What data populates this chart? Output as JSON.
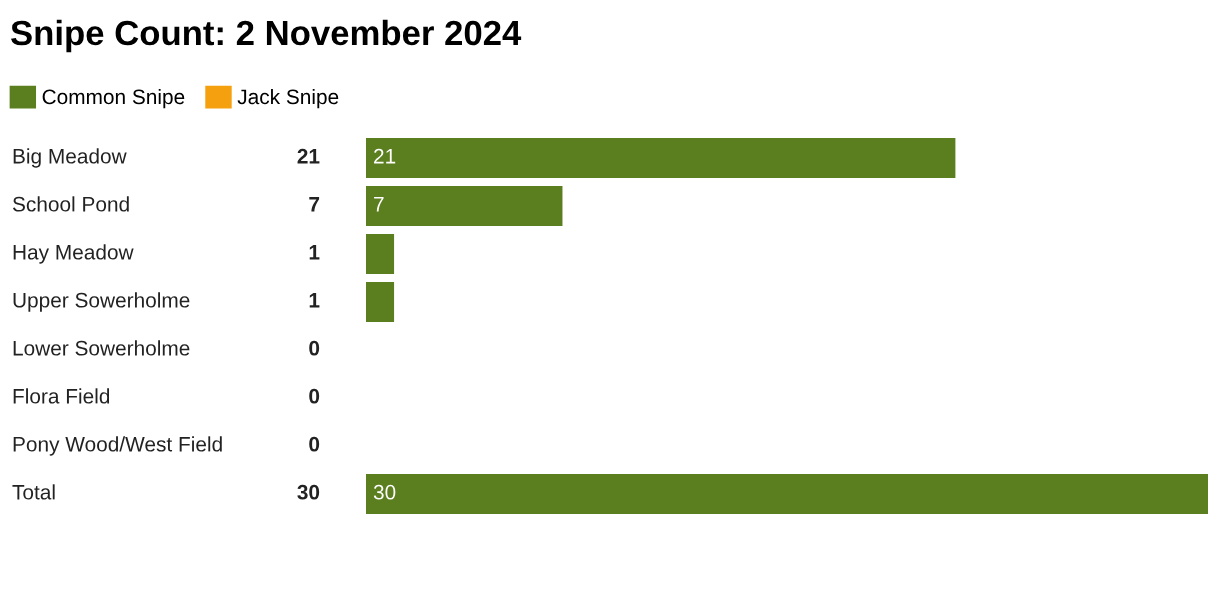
{
  "chart_data": {
    "type": "bar",
    "orientation": "horizontal",
    "title": "Snipe Count: 2 November 2024",
    "categories": [
      "Big Meadow",
      "School Pond",
      "Hay Meadow",
      "Upper Sowerholme",
      "Lower Sowerholme",
      "Flora Field",
      "Pony Wood/West Field",
      "Total"
    ],
    "series": [
      {
        "name": "Common Snipe",
        "color": "#5b7f1f",
        "values": [
          21,
          7,
          1,
          1,
          0,
          0,
          0,
          30
        ],
        "value_labels": [
          "21",
          "7",
          null,
          null,
          null,
          null,
          null,
          "30"
        ]
      },
      {
        "name": "Jack Snipe",
        "color": "#f5a00f",
        "values": [
          0,
          0,
          0,
          0,
          0,
          0,
          0,
          0
        ]
      }
    ],
    "totals": [
      "21",
      "7",
      "1",
      "1",
      "0",
      "0",
      "0",
      "30"
    ],
    "xlim": [
      0,
      30
    ],
    "legend": "top left"
  }
}
